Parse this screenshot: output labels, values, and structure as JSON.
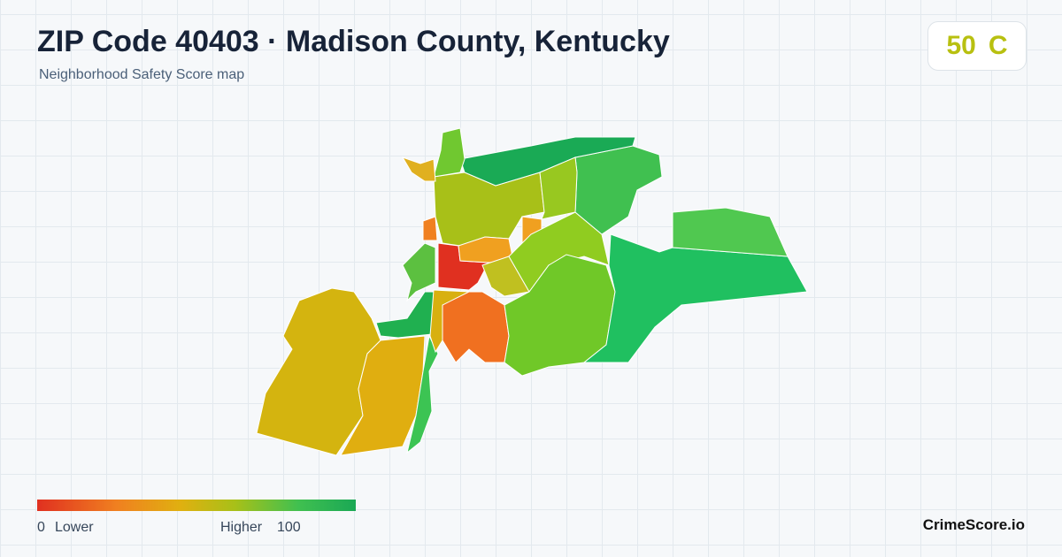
{
  "header": {
    "title": "ZIP Code 40403 · Madison County, Kentucky",
    "subtitle": "Neighborhood Safety Score map"
  },
  "badge": {
    "score": "50",
    "grade": "C"
  },
  "legend": {
    "min": "0",
    "min_label": "Lower",
    "max_label": "Higher",
    "max": "100"
  },
  "brand": "CrimeScore.io"
}
